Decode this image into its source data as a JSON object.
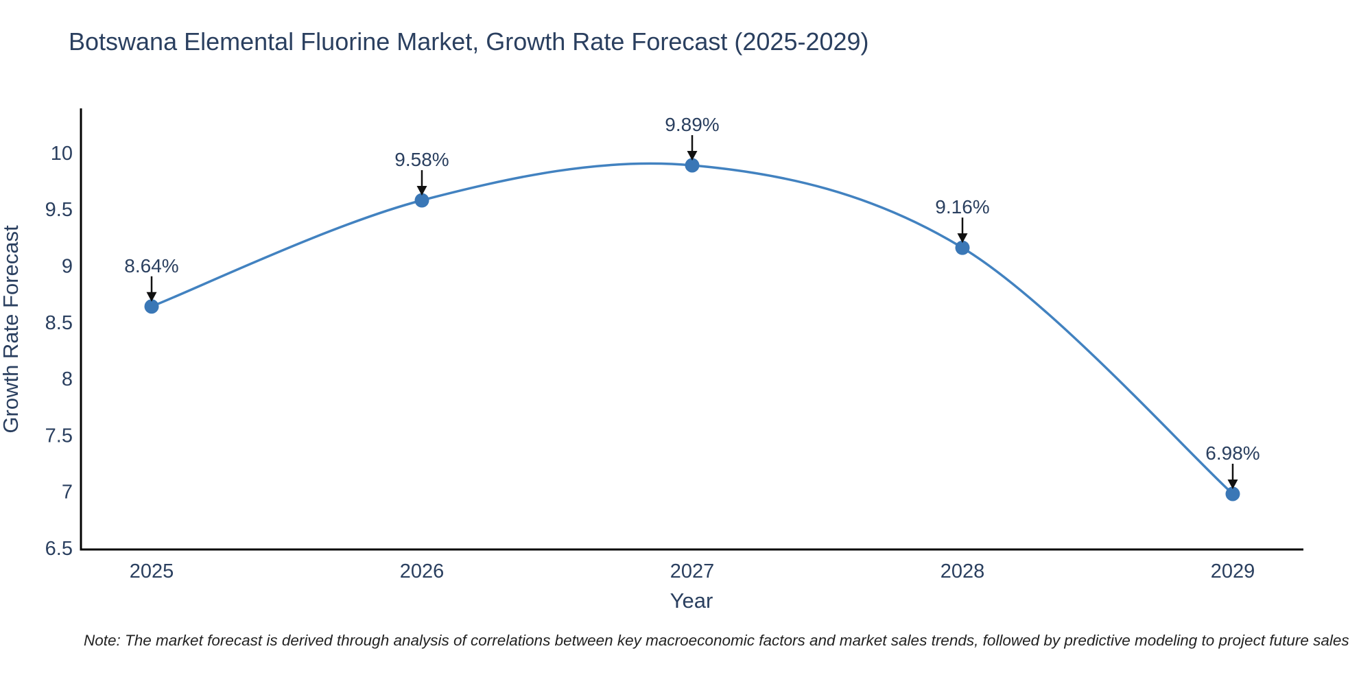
{
  "chart": {
    "title": "Botswana Elemental Fluorine Market, Growth Rate Forecast (2025-2029)",
    "xlabel": "Year",
    "ylabel": "Growth Rate Forecast",
    "note": "Note: The market forecast is derived through analysis of correlations between key macroeconomic factors and market sales trends, followed by predictive modeling to project future sales",
    "colors": {
      "line": "#4282c0",
      "marker": "#3a77b6",
      "axis": "#000000",
      "arrow": "#111111",
      "text": "#2a3f5f",
      "note_text": "#222222",
      "background": "#ffffff"
    }
  },
  "chart_data": {
    "type": "line",
    "line_shape": "spline",
    "x": [
      "2025",
      "2026",
      "2027",
      "2028",
      "2029"
    ],
    "series": [
      {
        "name": "Growth Rate Forecast",
        "values": [
          8.64,
          9.58,
          9.89,
          9.16,
          6.98
        ],
        "point_labels": [
          "8.64%",
          "9.58%",
          "9.89%",
          "9.16%",
          "6.98%"
        ]
      }
    ],
    "title": "Botswana Elemental Fluorine Market, Growth Rate Forecast (2025-2029)",
    "xlabel": "Year",
    "ylabel": "Growth Rate Forecast",
    "ylim": [
      6.5,
      10
    ],
    "yticks": [
      6.5,
      7,
      7.5,
      8,
      8.5,
      9,
      9.5,
      10
    ],
    "grid": false,
    "legend": false,
    "annotations": "each point labeled with its percentage value and a downward black arrow"
  }
}
